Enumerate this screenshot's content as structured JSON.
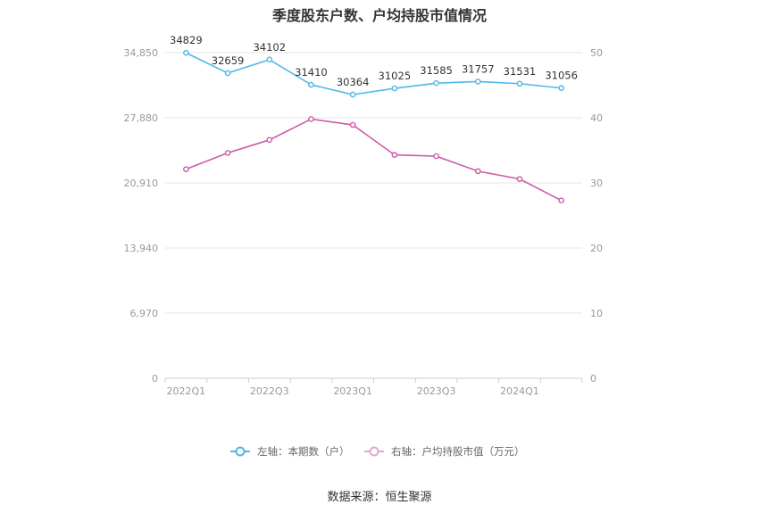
{
  "title": "季度股东户数、户均持股市值情况",
  "source": "数据来源：恒生聚源",
  "colors": {
    "left_series": "#4db8e8",
    "right_series": "#cc5aa8",
    "grid": "#e6e6e6",
    "axis_text": "#999999"
  },
  "chart_data": {
    "type": "line",
    "x": [
      "2022Q1",
      "2022Q2",
      "2022Q3",
      "2022Q4",
      "2023Q1",
      "2023Q2",
      "2023Q3",
      "2023Q4",
      "2024Q1",
      "2024Q2"
    ],
    "x_tick_labels": [
      "2022Q1",
      "",
      "2022Q3",
      "",
      "2023Q1",
      "",
      "2023Q3",
      "",
      "2024Q1",
      ""
    ],
    "y_left_ticks": [
      0,
      6970,
      13940,
      20910,
      27880,
      34850
    ],
    "y_left_tick_labels": [
      "0",
      "6,970",
      "13,940",
      "20,910",
      "27,880",
      "34,850"
    ],
    "y_left_lim": [
      0,
      34850
    ],
    "y_right_ticks": [
      0,
      10,
      20,
      30,
      40,
      50
    ],
    "y_right_lim": [
      0,
      50
    ],
    "grid": true,
    "legend_position": "bottom",
    "series": [
      {
        "name": "左轴：本期数（户）",
        "axis": "left",
        "values": [
          34829,
          32659,
          34102,
          31410,
          30364,
          31025,
          31585,
          31757,
          31531,
          31056
        ],
        "labels": [
          "34829",
          "32659",
          "34102",
          "31410",
          "30364",
          "31025",
          "31585",
          "31757",
          "31531",
          "31056"
        ]
      },
      {
        "name": "右轴：户均持股市值（万元）",
        "axis": "right",
        "values": [
          32.1,
          34.6,
          36.6,
          39.8,
          38.9,
          34.3,
          34.1,
          31.8,
          30.6,
          27.3
        ]
      }
    ]
  }
}
